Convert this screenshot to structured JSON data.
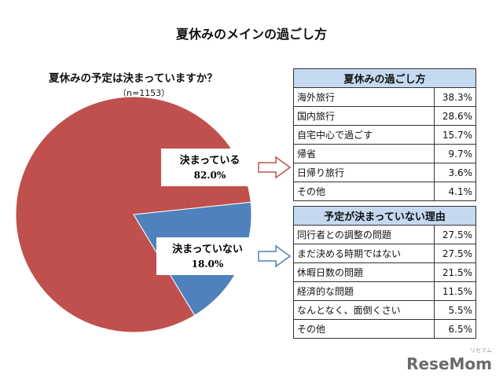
{
  "title": "夏休みのメインの過ごし方",
  "chart_data": {
    "type": "pie",
    "title": "夏休みの予定は決まっていますか？",
    "subtitle": "（n=1153）",
    "slices": [
      {
        "label": "決まっている",
        "value": 82.0,
        "value_label": "82.0%",
        "color": "#c0504d"
      },
      {
        "label": "決まっていない",
        "value": 18.0,
        "value_label": "18.0%",
        "color": "#4f81bd"
      }
    ]
  },
  "table_decided": {
    "header": "夏休みの過ごし方",
    "rows": [
      {
        "label": "海外旅行",
        "value": "38.3%"
      },
      {
        "label": "国内旅行",
        "value": "28.6%"
      },
      {
        "label": "自宅中心で過ごす",
        "value": "15.7%"
      },
      {
        "label": "帰省",
        "value": "9.7%"
      },
      {
        "label": "日帰り旅行",
        "value": "3.6%"
      },
      {
        "label": "その他",
        "value": "4.1%"
      }
    ]
  },
  "table_undecided": {
    "header": "予定が決まっていない理由",
    "rows": [
      {
        "label": "同行者との調整の問題",
        "value": "27.5%"
      },
      {
        "label": "まだ決める時期ではない",
        "value": "27.5%"
      },
      {
        "label": "休暇日数の問題",
        "value": "21.5%"
      },
      {
        "label": "経済的な問題",
        "value": "11.5%"
      },
      {
        "label": "なんとなく、面倒くさい",
        "value": "5.5%"
      },
      {
        "label": "その他",
        "value": "6.5%"
      }
    ]
  },
  "logo": {
    "text": "ReseMom",
    "kana": "リセマム"
  }
}
